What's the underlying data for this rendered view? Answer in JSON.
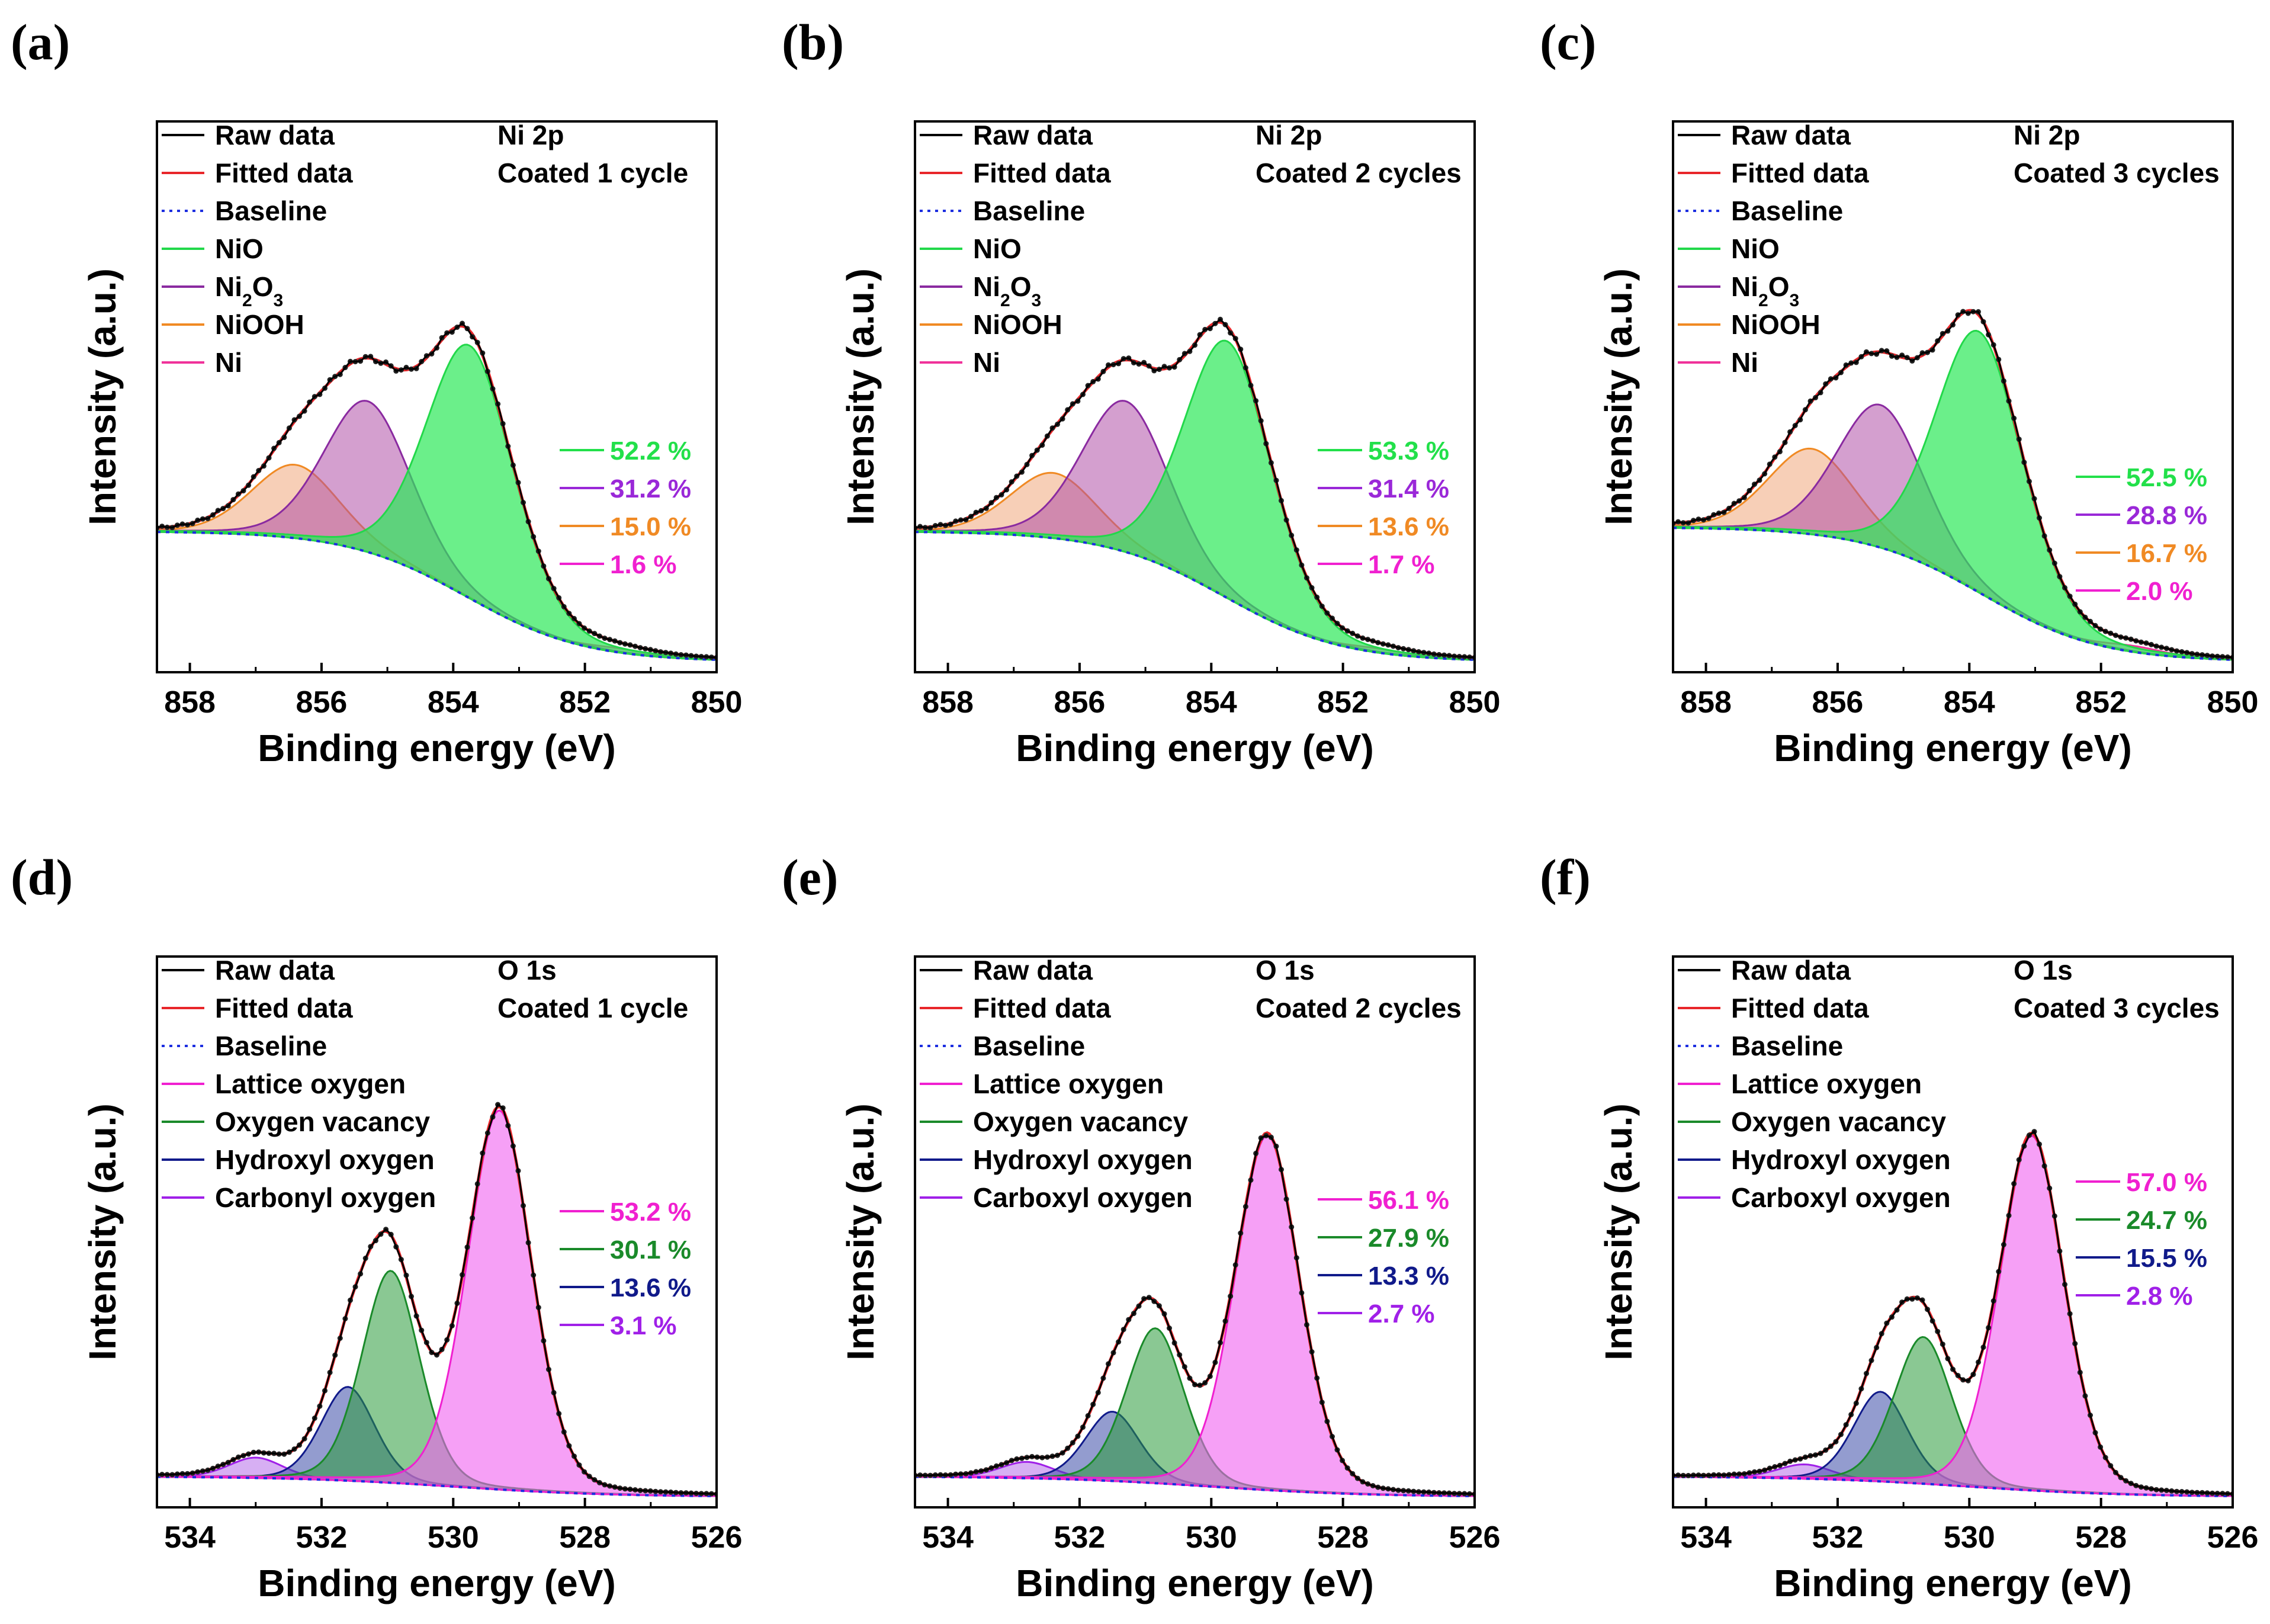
{
  "chart_data": [
    {
      "panel": "(a)",
      "type": "line",
      "title": "Ni 2p",
      "subtitle": "Coated 1 cycle",
      "xlabel": "Binding energy (eV)",
      "ylabel": "Intensity (a.u.)",
      "xlim": [
        858.5,
        850
      ],
      "xticks": [
        "858",
        "856",
        "854",
        "852",
        "850"
      ],
      "legend": [
        "Raw data",
        "Fitted data",
        "Baseline",
        "NiO",
        "Ni2O3",
        "NiOOH",
        "Ni"
      ],
      "legend_colors": [
        "#000000",
        "#e8262a",
        "#1c2ee0",
        "#22d84a",
        "#8a2aa0",
        "#f08a24",
        "#f0329a"
      ],
      "percent_labels": [
        "52.2 %",
        "31.2 %",
        "15.0 %",
        "1.6 %"
      ],
      "percent_colors": [
        "#22e04a",
        "#9a28d8",
        "#f08a24",
        "#f020d0"
      ],
      "components": [
        {
          "name": "NiO",
          "center": 853.75,
          "height": 0.62,
          "width": 0.68,
          "color": "#2ce858",
          "opacity": 0.7
        },
        {
          "name": "Ni2O3",
          "center": 855.3,
          "height": 0.37,
          "width": 0.68,
          "color": "#b050a8",
          "opacity": 0.55
        },
        {
          "name": "NiOOH",
          "center": 856.4,
          "height": 0.18,
          "width": 0.68,
          "color": "#f0a070",
          "opacity": 0.5
        },
        {
          "name": "Ni",
          "center": 851.5,
          "height": 0.01,
          "width": 0.5,
          "color": "#f060c0",
          "opacity": 0.4
        }
      ],
      "baseline": [
        0.34,
        0.02,
        853.8,
        0.9
      ]
    },
    {
      "panel": "(b)",
      "type": "line",
      "title": "Ni 2p",
      "subtitle": "Coated 2 cycles",
      "xlabel": "Binding energy (eV)",
      "ylabel": "Intensity (a.u.)",
      "xlim": [
        858.5,
        850
      ],
      "xticks": [
        "858",
        "856",
        "854",
        "852",
        "850"
      ],
      "legend": [
        "Raw data",
        "Fitted data",
        "Baseline",
        "NiO",
        "Ni2O3",
        "NiOOH",
        "Ni"
      ],
      "legend_colors": [
        "#000000",
        "#e8262a",
        "#1c2ee0",
        "#22d84a",
        "#8a2aa0",
        "#f08a24",
        "#f0329a"
      ],
      "percent_labels": [
        "53.3 %",
        "31.4 %",
        "13.6 %",
        "1.7 %"
      ],
      "percent_colors": [
        "#22e04a",
        "#9a28d8",
        "#f08a24",
        "#f020d0"
      ],
      "components": [
        {
          "name": "NiO",
          "center": 853.75,
          "height": 0.63,
          "width": 0.68,
          "color": "#2ce858",
          "opacity": 0.7
        },
        {
          "name": "Ni2O3",
          "center": 855.3,
          "height": 0.37,
          "width": 0.68,
          "color": "#b050a8",
          "opacity": 0.55
        },
        {
          "name": "NiOOH",
          "center": 856.4,
          "height": 0.16,
          "width": 0.68,
          "color": "#f0a070",
          "opacity": 0.5
        },
        {
          "name": "Ni",
          "center": 851.5,
          "height": 0.01,
          "width": 0.5,
          "color": "#f060c0",
          "opacity": 0.4
        }
      ],
      "baseline": [
        0.34,
        0.02,
        853.8,
        0.9
      ]
    },
    {
      "panel": "(c)",
      "type": "line",
      "title": "Ni 2p",
      "subtitle": "Coated 3 cycles",
      "xlabel": "Binding energy (eV)",
      "ylabel": "Intensity (a.u.)",
      "xlim": [
        858.5,
        850
      ],
      "xticks": [
        "858",
        "856",
        "854",
        "852",
        "850"
      ],
      "legend": [
        "Raw data",
        "Fitted data",
        "Baseline",
        "NiO",
        "Ni2O3",
        "NiOOH",
        "Ni"
      ],
      "legend_colors": [
        "#000000",
        "#e8262a",
        "#1c2ee0",
        "#22d84a",
        "#8a2aa0",
        "#f08a24",
        "#f0329a"
      ],
      "percent_labels": [
        "52.5 %",
        "28.8 %",
        "16.7 %",
        "2.0 %"
      ],
      "percent_colors": [
        "#22e04a",
        "#9a28d8",
        "#f08a24",
        "#f020d0"
      ],
      "components": [
        {
          "name": "NiO",
          "center": 853.85,
          "height": 0.64,
          "width": 0.68,
          "color": "#2ce858",
          "opacity": 0.7
        },
        {
          "name": "Ni2O3",
          "center": 855.35,
          "height": 0.35,
          "width": 0.68,
          "color": "#b050a8",
          "opacity": 0.55
        },
        {
          "name": "NiOOH",
          "center": 856.4,
          "height": 0.21,
          "width": 0.68,
          "color": "#f0a070",
          "opacity": 0.5
        },
        {
          "name": "Ni",
          "center": 851.5,
          "height": 0.015,
          "width": 0.5,
          "color": "#f060c0",
          "opacity": 0.4
        }
      ],
      "baseline": [
        0.35,
        0.02,
        853.8,
        0.9
      ]
    },
    {
      "panel": "(d)",
      "type": "line",
      "title": "O 1s",
      "subtitle": "Coated 1 cycle",
      "xlabel": "Binding energy (eV)",
      "ylabel": "Intensity (a.u.)",
      "xlim": [
        534.5,
        526
      ],
      "xticks": [
        "534",
        "532",
        "530",
        "528",
        "526"
      ],
      "legend": [
        "Raw data",
        "Fitted data",
        "Baseline",
        "Lattice oxygen",
        "Oxygen vacancy",
        "Hydroxyl oxygen",
        "Carbonyl oxygen"
      ],
      "legend_colors": [
        "#000000",
        "#e8262a",
        "#1c2ee0",
        "#f020d0",
        "#1a8a2a",
        "#101a8a",
        "#a020e8"
      ],
      "percent_labels": [
        "53.2 %",
        "30.1 %",
        "13.6 %",
        "3.1 %"
      ],
      "percent_colors": [
        "#f020d0",
        "#1a8a2a",
        "#101a8a",
        "#a020e8"
      ],
      "components": [
        {
          "name": "Lattice oxygen",
          "center": 529.3,
          "height": 0.93,
          "width": 0.5,
          "color": "#f060f0",
          "opacity": 0.6
        },
        {
          "name": "Oxygen vacancy",
          "center": 530.95,
          "height": 0.52,
          "width": 0.45,
          "color": "#2a9a3a",
          "opacity": 0.55
        },
        {
          "name": "Hydroxyl oxygen",
          "center": 531.6,
          "height": 0.23,
          "width": 0.42,
          "color": "#3a4aa8",
          "opacity": 0.55
        },
        {
          "name": "Carbonyl oxygen",
          "center": 533.0,
          "height": 0.05,
          "width": 0.42,
          "color": "#b060e8",
          "opacity": 0.5
        }
      ],
      "baseline": [
        0.07,
        0.02,
        530.0,
        1.2
      ]
    },
    {
      "panel": "(e)",
      "type": "line",
      "title": "O 1s",
      "subtitle": "Coated 2 cycles",
      "xlabel": "Binding energy (eV)",
      "ylabel": "Intensity (a.u.)",
      "xlim": [
        534.5,
        526
      ],
      "xticks": [
        "534",
        "532",
        "530",
        "528",
        "526"
      ],
      "legend": [
        "Raw data",
        "Fitted data",
        "Baseline",
        "Lattice oxygen",
        "Oxygen vacancy",
        "Hydroxyl oxygen",
        "Carboxyl oxygen"
      ],
      "legend_colors": [
        "#000000",
        "#e8262a",
        "#1c2ee0",
        "#f020d0",
        "#1a8a2a",
        "#101a8a",
        "#a020e8"
      ],
      "percent_labels": [
        "56.1 %",
        "27.9 %",
        "13.3 %",
        "2.7 %"
      ],
      "percent_colors": [
        "#f020d0",
        "#1a8a2a",
        "#101a8a",
        "#a020e8"
      ],
      "components": [
        {
          "name": "Lattice oxygen",
          "center": 529.15,
          "height": 0.87,
          "width": 0.5,
          "color": "#f060f0",
          "opacity": 0.6
        },
        {
          "name": "Oxygen vacancy",
          "center": 530.85,
          "height": 0.38,
          "width": 0.45,
          "color": "#2a9a3a",
          "opacity": 0.55
        },
        {
          "name": "Hydroxyl oxygen",
          "center": 531.5,
          "height": 0.17,
          "width": 0.42,
          "color": "#3a4aa8",
          "opacity": 0.55
        },
        {
          "name": "Carboxyl oxygen",
          "center": 532.8,
          "height": 0.04,
          "width": 0.42,
          "color": "#b060e8",
          "opacity": 0.5
        }
      ],
      "baseline": [
        0.07,
        0.02,
        530.0,
        1.2
      ]
    },
    {
      "panel": "(f)",
      "type": "line",
      "title": "O 1s",
      "subtitle": "Coated 3 cycles",
      "xlabel": "Binding energy (eV)",
      "ylabel": "Intensity (a.u.)",
      "xlim": [
        534.5,
        526
      ],
      "xticks": [
        "534",
        "532",
        "530",
        "528",
        "526"
      ],
      "legend": [
        "Raw data",
        "Fitted data",
        "Baseline",
        "Lattice oxygen",
        "Oxygen vacancy",
        "Hydroxyl oxygen",
        "Carboxyl oxygen"
      ],
      "legend_colors": [
        "#000000",
        "#e8262a",
        "#1c2ee0",
        "#f020d0",
        "#1a8a2a",
        "#101a8a",
        "#a020e8"
      ],
      "percent_labels": [
        "57.0 %",
        "24.7 %",
        "15.5 %",
        "2.8 %"
      ],
      "percent_colors": [
        "#f020d0",
        "#1a8a2a",
        "#101a8a",
        "#a020e8"
      ],
      "components": [
        {
          "name": "Lattice oxygen",
          "center": 529.05,
          "height": 0.87,
          "width": 0.5,
          "color": "#f060f0",
          "opacity": 0.6
        },
        {
          "name": "Oxygen vacancy",
          "center": 530.7,
          "height": 0.36,
          "width": 0.45,
          "color": "#2a9a3a",
          "opacity": 0.55
        },
        {
          "name": "Hydroxyl oxygen",
          "center": 531.35,
          "height": 0.22,
          "width": 0.42,
          "color": "#3a4aa8",
          "opacity": 0.55
        },
        {
          "name": "Carboxyl oxygen",
          "center": 532.5,
          "height": 0.035,
          "width": 0.42,
          "color": "#b060e8",
          "opacity": 0.5
        }
      ],
      "baseline": [
        0.07,
        0.02,
        530.0,
        1.2
      ]
    }
  ]
}
